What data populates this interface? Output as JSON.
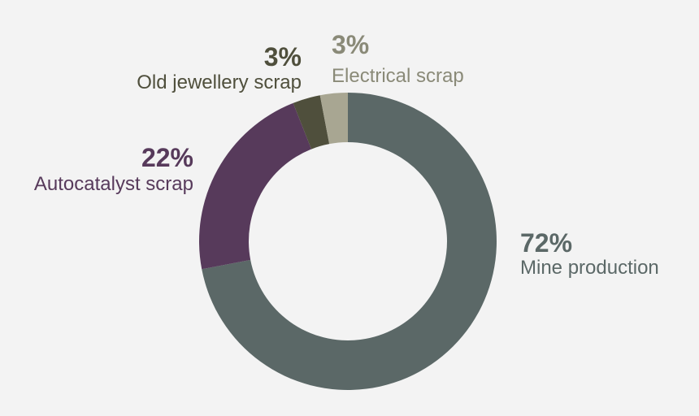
{
  "chart_data": {
    "type": "pie",
    "variant": "donut",
    "title": "",
    "categories": [
      "Mine production",
      "Autocatalyst scrap",
      "Old jewellery scrap",
      "Electrical scrap"
    ],
    "values": [
      72,
      22,
      3,
      3
    ],
    "value_labels": [
      "72%",
      "22%",
      "3%",
      "3%"
    ],
    "colors": [
      "#5b6867",
      "#573a5b",
      "#4f4f3c",
      "#a8a692"
    ],
    "label_colors": [
      "#5b6867",
      "#573a5b",
      "#4f4f3c",
      "#8a8a78"
    ],
    "start_angle_deg": 0,
    "direction": "clockwise",
    "legend": "none",
    "background": "#f3f3f3"
  }
}
